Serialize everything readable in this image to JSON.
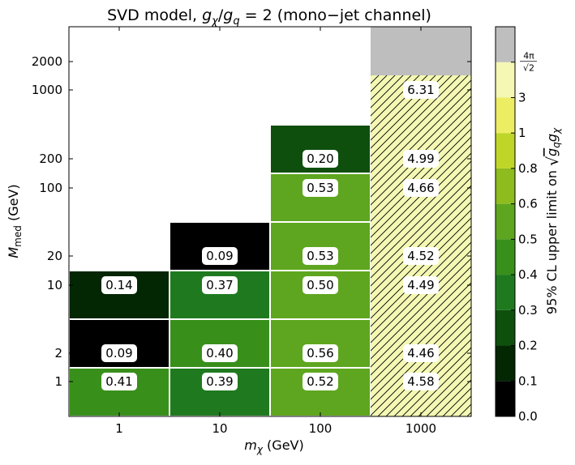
{
  "chart_data": {
    "type": "heatmap",
    "title": "SVD model, g_χ/g_q = 2 (mono−jet channel)",
    "title_parts": {
      "prefix": "SVD model, ",
      "num": "g",
      "num_sub": "χ",
      "slash": "/",
      "den": "g",
      "den_sub": "q",
      "suffix": " = 2 (mono−jet channel)"
    },
    "xlabel": "m_χ (GeV)",
    "xlabel_parts": {
      "base": "m",
      "sub": "χ",
      "unit": " (GeV)"
    },
    "ylabel": "M_med (GeV)",
    "ylabel_parts": {
      "base": "M",
      "sub": "med",
      "unit": " (GeV)"
    },
    "x_scale": "log",
    "y_scale": "log",
    "x_ticks": [
      {
        "value": 1,
        "label": "1"
      },
      {
        "value": 10,
        "label": "10"
      },
      {
        "value": 100,
        "label": "100"
      },
      {
        "value": 1000,
        "label": "1000"
      }
    ],
    "y_ticks": [
      {
        "value": 1,
        "label": "1"
      },
      {
        "value": 2,
        "label": "2"
      },
      {
        "value": 10,
        "label": "10"
      },
      {
        "value": 20,
        "label": "20"
      },
      {
        "value": 100,
        "label": "100"
      },
      {
        "value": 200,
        "label": "200"
      },
      {
        "value": 1000,
        "label": "1000"
      },
      {
        "value": 2000,
        "label": "2000"
      }
    ],
    "cells": [
      {
        "m_chi": 1,
        "M_med": 1,
        "value": 0.41,
        "label": "0.41"
      },
      {
        "m_chi": 1,
        "M_med": 2,
        "value": 0.09,
        "label": "0.09"
      },
      {
        "m_chi": 1,
        "M_med": 10,
        "value": 0.14,
        "label": "0.14"
      },
      {
        "m_chi": 10,
        "M_med": 1,
        "value": 0.39,
        "label": "0.39"
      },
      {
        "m_chi": 10,
        "M_med": 2,
        "value": 0.4,
        "label": "0.40"
      },
      {
        "m_chi": 10,
        "M_med": 10,
        "value": 0.37,
        "label": "0.37"
      },
      {
        "m_chi": 10,
        "M_med": 20,
        "value": 0.09,
        "label": "0.09"
      },
      {
        "m_chi": 100,
        "M_med": 1,
        "value": 0.52,
        "label": "0.52"
      },
      {
        "m_chi": 100,
        "M_med": 2,
        "value": 0.56,
        "label": "0.56"
      },
      {
        "m_chi": 100,
        "M_med": 10,
        "value": 0.5,
        "label": "0.50"
      },
      {
        "m_chi": 100,
        "M_med": 20,
        "value": 0.53,
        "label": "0.53"
      },
      {
        "m_chi": 100,
        "M_med": 100,
        "value": 0.53,
        "label": "0.53"
      },
      {
        "m_chi": 100,
        "M_med": 200,
        "value": 0.2,
        "label": "0.20"
      },
      {
        "m_chi": 1000,
        "M_med": 1,
        "value": 4.58,
        "label": "4.58"
      },
      {
        "m_chi": 1000,
        "M_med": 2,
        "value": 4.46,
        "label": "4.46"
      },
      {
        "m_chi": 1000,
        "M_med": 10,
        "value": 4.49,
        "label": "4.49"
      },
      {
        "m_chi": 1000,
        "M_med": 20,
        "value": 4.52,
        "label": "4.52"
      },
      {
        "m_chi": 1000,
        "M_med": 100,
        "value": 4.66,
        "label": "4.66"
      },
      {
        "m_chi": 1000,
        "M_med": 200,
        "value": 4.99,
        "label": "4.99"
      },
      {
        "m_chi": 1000,
        "M_med": 1000,
        "value": 6.31,
        "label": "6.31"
      },
      {
        "m_chi": 1000,
        "M_med": 2000,
        "value": null,
        "label": ""
      }
    ],
    "colorbar": {
      "label": "95% CL upper limit on √(g_q g_χ)",
      "label_parts": {
        "prefix": "95% CL upper limit on ",
        "g1": "g",
        "g1_sub": "q",
        "g2": "g",
        "g2_sub": "χ"
      },
      "levels": [
        0.0,
        0.1,
        0.2,
        0.3,
        0.4,
        0.5,
        0.6,
        0.8,
        1,
        3,
        4.4428829,
        8
      ],
      "colors": [
        "#000000",
        "#032603",
        "#0e4f0e",
        "#1f7a1f",
        "#38901b",
        "#5ea61f",
        "#8ebb1e",
        "#bfd628",
        "#eded63",
        "#f4f8b3",
        "#bebebe"
      ],
      "tick_labels": [
        {
          "level": 0.0,
          "label": "0.0"
        },
        {
          "level": 0.1,
          "label": "0.1"
        },
        {
          "level": 0.2,
          "label": "0.2"
        },
        {
          "level": 0.3,
          "label": "0.3"
        },
        {
          "level": 0.4,
          "label": "0.4"
        },
        {
          "level": 0.5,
          "label": "0.5"
        },
        {
          "level": 0.6,
          "label": "0.6"
        },
        {
          "level": 0.8,
          "label": "0.8"
        },
        {
          "level": 1,
          "label": "1"
        },
        {
          "level": 3,
          "label": "3"
        }
      ],
      "special_tick": {
        "level": 4.4428829,
        "num": "4π",
        "den": "2"
      }
    },
    "hatched_above": 4.4428829,
    "colors": {
      "cell_border": "#ffffff",
      "hatch": "#000000",
      "missing": "#bebebe",
      "hatch_bg": "#f4f8b3"
    }
  }
}
